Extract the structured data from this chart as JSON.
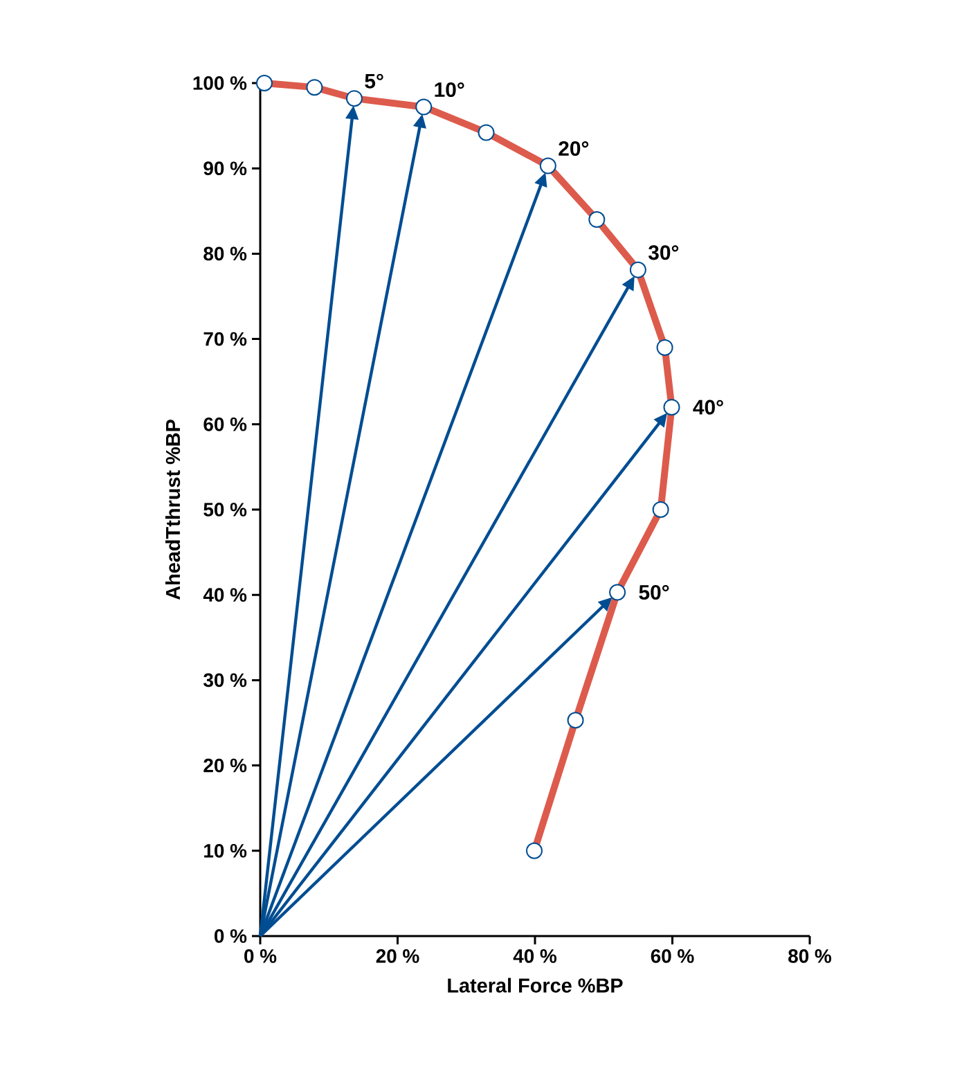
{
  "chart_data": {
    "type": "line",
    "xlabel": "Lateral Force %BP",
    "ylabel": "AheadTthrust %BP",
    "x": [
      0.6,
      7.9,
      13.7,
      23.8,
      32.9,
      41.9,
      49.0,
      55.0,
      58.9,
      59.9,
      58.3,
      52.0,
      45.9,
      39.9
    ],
    "series": [
      {
        "color": "#dd5b4c",
        "values": [
          100,
          99.5,
          98.2,
          97.2,
          94.2,
          90.3,
          84.0,
          78.1,
          69.0,
          62.0,
          50.0,
          40.3,
          25.3,
          10.0
        ]
      }
    ],
    "marker": "circle",
    "xlim": [
      0,
      80
    ],
    "ylim": [
      0,
      100
    ],
    "xticks": [
      {
        "value": 0,
        "label": "0 %"
      },
      {
        "value": 20,
        "label": "20 %"
      },
      {
        "value": 40,
        "label": "40 %"
      },
      {
        "value": 60,
        "label": "60 %"
      },
      {
        "value": 80,
        "label": "80 %"
      }
    ],
    "yticks": [
      {
        "value": 0,
        "label": "0 %"
      },
      {
        "value": 10,
        "label": "10 %"
      },
      {
        "value": 20,
        "label": "20 %"
      },
      {
        "value": 30,
        "label": "30 %"
      },
      {
        "value": 40,
        "label": "40 %"
      },
      {
        "value": 50,
        "label": "50 %"
      },
      {
        "value": 60,
        "label": "60 %"
      },
      {
        "value": 70,
        "label": "70 %"
      },
      {
        "value": 80,
        "label": "80 %"
      },
      {
        "value": 90,
        "label": "90 %"
      },
      {
        "value": 100,
        "label": "100 %"
      }
    ],
    "annotations": [
      {
        "text": "5°",
        "x": 13.7,
        "y": 98.2
      },
      {
        "text": "10°",
        "x": 23.8,
        "y": 97.2
      },
      {
        "text": "20°",
        "x": 41.9,
        "y": 90.3
      },
      {
        "text": "30°",
        "x": 55.0,
        "y": 78.1
      },
      {
        "text": "40°",
        "x": 59.9,
        "y": 62.0
      },
      {
        "text": "50°",
        "x": 52.0,
        "y": 40.3
      }
    ]
  }
}
